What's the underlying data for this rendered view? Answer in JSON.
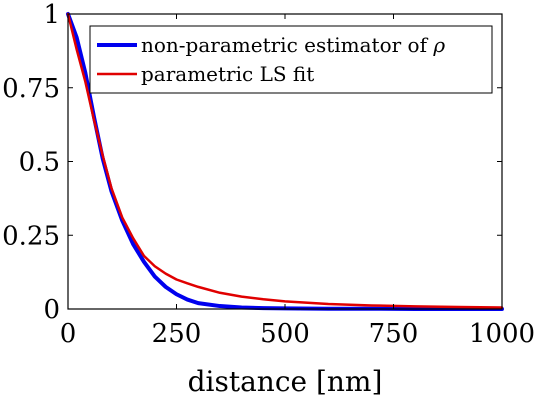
{
  "chart_data": {
    "type": "line",
    "title": "",
    "xlabel": "distance [nm]",
    "ylabel": "",
    "xlim": [
      0,
      1000
    ],
    "ylim": [
      0,
      1
    ],
    "xticks": [
      0,
      250,
      500,
      750,
      1000
    ],
    "xtick_labels": [
      "0",
      "250",
      "500",
      "750",
      "1000"
    ],
    "yticks": [
      0,
      0.25,
      0.5,
      0.75,
      1
    ],
    "ytick_labels": [
      "0",
      "0.25",
      "0.5",
      "0.75",
      "1"
    ],
    "grid": false,
    "legend_position": "top-right",
    "series": [
      {
        "name": "non-parametric estimator of ρ",
        "color": "#0000ee",
        "x": [
          0,
          20,
          40,
          60,
          80,
          100,
          125,
          150,
          175,
          200,
          225,
          250,
          275,
          300,
          350,
          400,
          450,
          500,
          600,
          700,
          800,
          900,
          1000
        ],
        "y": [
          1.0,
          0.92,
          0.8,
          0.65,
          0.51,
          0.4,
          0.3,
          0.22,
          0.16,
          0.11,
          0.075,
          0.05,
          0.032,
          0.02,
          0.01,
          0.005,
          0.003,
          0.002,
          0.001,
          0.001,
          0.0,
          0.0,
          0.0
        ]
      },
      {
        "name": "parametric LS fit",
        "color": "#e00000",
        "x": [
          0,
          20,
          40,
          60,
          80,
          100,
          125,
          150,
          175,
          200,
          225,
          250,
          275,
          300,
          350,
          400,
          450,
          500,
          600,
          700,
          800,
          900,
          1000
        ],
        "y": [
          1.0,
          0.88,
          0.77,
          0.64,
          0.52,
          0.41,
          0.31,
          0.24,
          0.18,
          0.145,
          0.12,
          0.1,
          0.087,
          0.075,
          0.055,
          0.042,
          0.033,
          0.026,
          0.017,
          0.012,
          0.009,
          0.007,
          0.005
        ]
      }
    ]
  },
  "legend": {
    "label_1": "non-parametric estimator of ",
    "label_1_symbol": "ρ",
    "label_2": "parametric LS fit"
  }
}
